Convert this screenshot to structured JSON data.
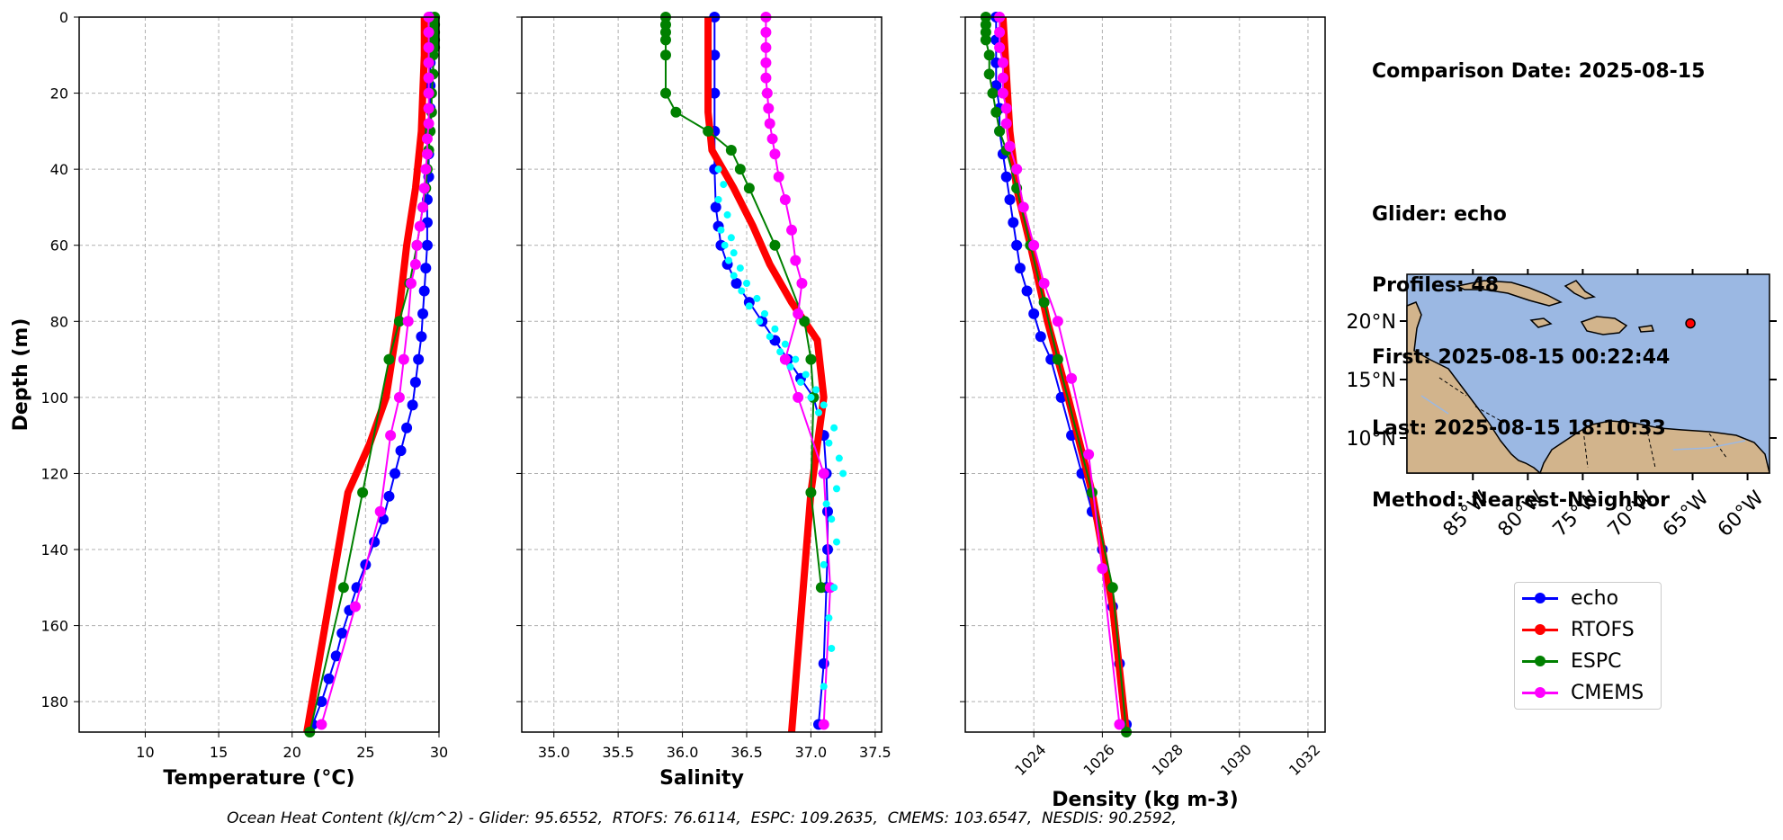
{
  "chart_data": [
    {
      "type": "line",
      "xlabel": "Temperature (°C)",
      "ylabel": "Depth (m)",
      "xlim": [
        5.5,
        30
      ],
      "ylim": [
        188,
        0
      ],
      "xticks": [
        "10",
        "15",
        "20",
        "25",
        "30"
      ],
      "yticks": [
        "0",
        "20",
        "40",
        "60",
        "80",
        "100",
        "120",
        "140",
        "160",
        "180"
      ],
      "grid": true,
      "series": [
        {
          "name": "echo",
          "color": "#0000ff",
          "x": [
            29.4,
            29.4,
            29.4,
            29.4,
            29.4,
            29.3,
            29.3,
            29.3,
            29.2,
            29.2,
            29.2,
            29.1,
            29.0,
            28.9,
            28.8,
            28.6,
            28.4,
            28.2,
            27.8,
            27.4,
            27.0,
            26.6,
            26.2,
            25.6,
            25.0,
            24.4,
            23.9,
            23.4,
            23.0,
            22.5,
            22.0,
            21.4
          ],
          "y": [
            0,
            6,
            12,
            18,
            24,
            30,
            36,
            42,
            48,
            54,
            60,
            66,
            72,
            78,
            84,
            90,
            96,
            102,
            108,
            114,
            120,
            126,
            132,
            138,
            144,
            150,
            156,
            162,
            168,
            174,
            180,
            186
          ]
        },
        {
          "name": "RTOFS",
          "color": "#ff0000",
          "x": [
            29.0,
            29.0,
            28.9,
            28.8,
            28.4,
            27.8,
            27.2,
            26.4,
            25.3,
            23.8,
            21.0
          ],
          "y": [
            0,
            10,
            20,
            30,
            45,
            60,
            80,
            100,
            112,
            125,
            188
          ]
        },
        {
          "name": "ESPC",
          "color": "#008000",
          "x": [
            29.7,
            29.7,
            29.7,
            29.7,
            29.7,
            29.6,
            29.6,
            29.5,
            29.5,
            29.4,
            29.3,
            29.2,
            29.1,
            28.9,
            28.5,
            28.0,
            27.3,
            26.6,
            24.8,
            23.5,
            21.2
          ],
          "y": [
            0,
            2,
            4,
            6,
            8,
            10,
            15,
            20,
            25,
            30,
            35,
            40,
            45,
            50,
            60,
            70,
            80,
            90,
            125,
            150,
            188
          ]
        },
        {
          "name": "CMEMS",
          "color": "#ff00ff",
          "x": [
            29.3,
            29.3,
            29.3,
            29.3,
            29.3,
            29.3,
            29.3,
            29.3,
            29.2,
            29.2,
            29.1,
            29.0,
            28.9,
            28.7,
            28.5,
            28.4,
            28.1,
            27.9,
            27.6,
            27.3,
            26.7,
            26.0,
            24.3,
            22.0
          ],
          "y": [
            0,
            4,
            8,
            12,
            16,
            20,
            24,
            28,
            32,
            36,
            40,
            45,
            50,
            55,
            60,
            65,
            70,
            80,
            90,
            100,
            110,
            130,
            155,
            186
          ]
        }
      ]
    },
    {
      "type": "line",
      "xlabel": "Salinity",
      "ylabel": "",
      "xlim": [
        34.75,
        37.55
      ],
      "ylim": [
        188,
        0
      ],
      "xticks": [
        "35.0",
        "35.5",
        "36.0",
        "36.5",
        "37.0",
        "37.5"
      ],
      "grid": true,
      "series": [
        {
          "name": "echo",
          "color": "#0000ff",
          "x": [
            36.25,
            36.25,
            36.25,
            36.25,
            36.25,
            36.26,
            36.28,
            36.3,
            36.35,
            36.42,
            36.52,
            36.62,
            36.72,
            36.82,
            36.92,
            37.02,
            37.1,
            37.12,
            37.13,
            37.13,
            37.12,
            37.1,
            37.06
          ],
          "y": [
            0,
            10,
            20,
            30,
            40,
            50,
            55,
            60,
            65,
            70,
            75,
            80,
            85,
            90,
            95,
            100,
            110,
            120,
            130,
            140,
            150,
            170,
            186
          ]
        },
        {
          "name": "RTOFS",
          "color": "#ff0000",
          "x": [
            36.2,
            36.2,
            36.2,
            36.23,
            36.4,
            36.55,
            36.68,
            36.85,
            37.05,
            37.1,
            37.0,
            36.85
          ],
          "y": [
            0,
            10,
            25,
            35,
            45,
            55,
            65,
            75,
            85,
            100,
            125,
            188
          ]
        },
        {
          "name": "ESPC",
          "color": "#008000",
          "x": [
            35.87,
            35.87,
            35.87,
            35.87,
            35.87,
            35.87,
            35.95,
            36.2,
            36.38,
            36.45,
            36.52,
            36.72,
            36.95,
            37.0,
            37.02,
            37.0,
            37.08
          ],
          "y": [
            0,
            2,
            4,
            6,
            10,
            20,
            25,
            30,
            35,
            40,
            45,
            60,
            80,
            90,
            100,
            125,
            150
          ]
        },
        {
          "name": "CMEMS",
          "color": "#ff00ff",
          "x": [
            36.65,
            36.65,
            36.65,
            36.65,
            36.65,
            36.66,
            36.67,
            36.68,
            36.7,
            36.72,
            36.75,
            36.8,
            36.85,
            36.88,
            36.93,
            36.9,
            36.8,
            36.9,
            37.1,
            37.15,
            37.1
          ],
          "y": [
            0,
            4,
            8,
            12,
            16,
            20,
            24,
            28,
            32,
            36,
            42,
            48,
            56,
            64,
            70,
            78,
            90,
            100,
            120,
            150,
            186
          ]
        },
        {
          "name": "",
          "color": "#00ffff",
          "type": "scatter",
          "x": [
            36.28,
            36.32,
            36.28,
            36.35,
            36.3,
            36.38,
            36.33,
            36.4,
            36.36,
            36.45,
            36.4,
            36.5,
            36.46,
            36.58,
            36.52,
            36.64,
            36.6,
            36.72,
            36.68,
            36.8,
            36.76,
            36.88,
            36.84,
            36.96,
            36.92,
            37.04,
            37.0,
            37.1,
            37.06,
            37.18,
            37.14,
            37.22,
            37.25,
            37.2,
            37.12,
            37.16,
            37.2,
            37.1,
            37.18,
            37.14,
            37.16,
            37.1
          ],
          "y": [
            40,
            44,
            48,
            52,
            56,
            58,
            60,
            62,
            64,
            66,
            68,
            70,
            72,
            74,
            76,
            78,
            80,
            82,
            84,
            86,
            88,
            90,
            92,
            94,
            96,
            98,
            100,
            102,
            104,
            108,
            112,
            116,
            120,
            124,
            128,
            132,
            138,
            144,
            150,
            158,
            166,
            176
          ]
        }
      ]
    },
    {
      "type": "line",
      "xlabel": "Density (kg m-3)",
      "ylabel": "",
      "xlim": [
        1022,
        1032.5
      ],
      "ylim": [
        188,
        0
      ],
      "xticks": [
        "1024",
        "1026",
        "1028",
        "1030",
        "1032"
      ],
      "grid": true,
      "series": [
        {
          "name": "echo",
          "color": "#0000ff",
          "x": [
            1022.9,
            1022.9,
            1022.9,
            1022.9,
            1023.0,
            1023.0,
            1023.1,
            1023.2,
            1023.3,
            1023.4,
            1023.5,
            1023.6,
            1023.8,
            1024.0,
            1024.2,
            1024.5,
            1024.8,
            1025.1,
            1025.4,
            1025.7,
            1026.0,
            1026.3,
            1026.5,
            1026.7
          ],
          "y": [
            0,
            6,
            12,
            18,
            24,
            30,
            36,
            42,
            48,
            54,
            60,
            66,
            72,
            78,
            84,
            90,
            100,
            110,
            120,
            130,
            140,
            155,
            170,
            186
          ]
        },
        {
          "name": "RTOFS",
          "color": "#ff0000",
          "x": [
            1023.1,
            1023.2,
            1023.3,
            1023.5,
            1023.9,
            1024.4,
            1025.0,
            1025.7,
            1026.3,
            1026.7
          ],
          "y": [
            0,
            15,
            30,
            45,
            60,
            80,
            100,
            125,
            155,
            188
          ]
        },
        {
          "name": "ESPC",
          "color": "#008000",
          "x": [
            1022.6,
            1022.6,
            1022.6,
            1022.6,
            1022.7,
            1022.7,
            1022.8,
            1022.9,
            1023.0,
            1023.2,
            1023.5,
            1023.9,
            1024.3,
            1024.7,
            1025.7,
            1026.3,
            1026.7
          ],
          "y": [
            0,
            2,
            4,
            6,
            10,
            15,
            20,
            25,
            30,
            35,
            45,
            60,
            75,
            90,
            125,
            150,
            188
          ]
        },
        {
          "name": "CMEMS",
          "color": "#ff00ff",
          "x": [
            1023.0,
            1023.0,
            1023.0,
            1023.1,
            1023.1,
            1023.1,
            1023.2,
            1023.2,
            1023.3,
            1023.5,
            1023.7,
            1024.0,
            1024.3,
            1024.7,
            1025.1,
            1025.6,
            1026.0,
            1026.5
          ],
          "y": [
            0,
            4,
            8,
            12,
            16,
            20,
            24,
            28,
            34,
            40,
            50,
            60,
            70,
            80,
            95,
            115,
            145,
            186
          ]
        }
      ]
    }
  ],
  "info": {
    "comparison": "Comparison Date: 2025-08-15",
    "glider": "Glider: echo",
    "profiles": "Profiles: 48",
    "first": "First: 2025-08-15 00:22:44",
    "last": "Last: 2025-08-15 18:10:33",
    "method": "Method: Nearest-Neighbor"
  },
  "map": {
    "lon_range": [
      -91,
      -58
    ],
    "lat_range": [
      7,
      24
    ],
    "lat_ticks": [
      "10°N",
      "15°N",
      "20°N"
    ],
    "lon_ticks": [
      "85°W",
      "80°W",
      "75°W",
      "70°W",
      "65°W",
      "60°W"
    ],
    "glider_position": {
      "lon": -65.2,
      "lat": 19.8
    },
    "ocean_color": "#9bb8e3",
    "land_color": "#d2b48c"
  },
  "legend": {
    "items": [
      {
        "label": "echo",
        "color": "#0000ff"
      },
      {
        "label": "RTOFS",
        "color": "#ff0000"
      },
      {
        "label": "ESPC",
        "color": "#008000"
      },
      {
        "label": "CMEMS",
        "color": "#ff00ff"
      }
    ]
  },
  "footer": "Ocean Heat Content (kJ/cm^2) - Glider: 95.6552,  RTOFS: 76.6114,  ESPC: 109.2635,  CMEMS: 103.6547,  NESDIS: 90.2592,"
}
